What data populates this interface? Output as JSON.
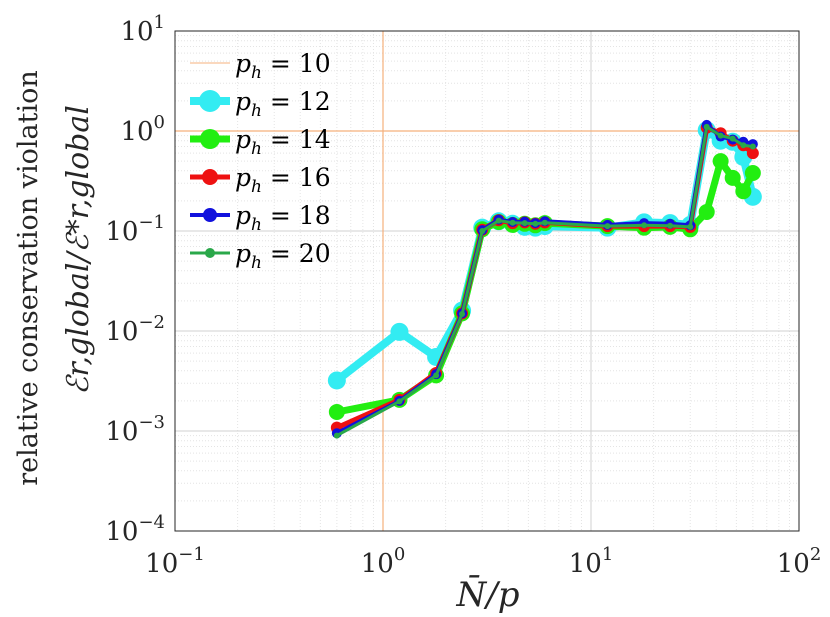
{
  "chart_data": {
    "type": "line",
    "xlabel": "N̄/p",
    "ylabel_line1": "relative conservation violation",
    "ylabel_line2": "ℰr,global/ℰ*r,global",
    "xscale": "log",
    "yscale": "log",
    "xlim": [
      0.1,
      100
    ],
    "ylim": [
      0.0001,
      10
    ],
    "grid": true,
    "legend_position": "top-left",
    "x_ticks": [
      {
        "base": "10",
        "exp": "−1"
      },
      {
        "base": "10",
        "exp": "0"
      },
      {
        "base": "10",
        "exp": "1"
      },
      {
        "base": "10",
        "exp": "2"
      }
    ],
    "y_ticks": [
      {
        "base": "10",
        "exp": "−4"
      },
      {
        "base": "10",
        "exp": "−3"
      },
      {
        "base": "10",
        "exp": "−2"
      },
      {
        "base": "10",
        "exp": "−1"
      },
      {
        "base": "10",
        "exp": "0"
      },
      {
        "base": "10",
        "exp": "1"
      }
    ],
    "reference_lines": {
      "x": 1,
      "y": 1,
      "color": "#f5b07c"
    },
    "series": [
      {
        "name": "p_h = 10",
        "legend_base": "p",
        "legend_sub": "h",
        "legend_value": " = 10",
        "color": "#f5b07c",
        "line_width": 1,
        "marker_size": 0,
        "x": [],
        "y": []
      },
      {
        "name": "p_h = 12",
        "legend_base": "p",
        "legend_sub": "h",
        "legend_value": " = 12",
        "color": "#33ecf2",
        "line_width": 8,
        "marker_size": 9,
        "x": [
          0.6,
          1.2,
          1.8,
          2.4,
          3.0,
          3.6,
          4.2,
          4.8,
          5.4,
          6.0,
          12,
          18,
          24,
          30,
          36,
          42,
          48,
          54,
          60
        ],
        "y": [
          0.0032,
          0.0098,
          0.0055,
          0.016,
          0.108,
          0.125,
          0.118,
          0.11,
          0.108,
          0.112,
          0.108,
          0.122,
          0.12,
          0.115,
          1.02,
          0.8,
          0.78,
          0.55,
          0.22
        ]
      },
      {
        "name": "p_h = 14",
        "legend_base": "p",
        "legend_sub": "h",
        "legend_value": " = 14",
        "color": "#22ee11",
        "line_width": 7,
        "marker_size": 8,
        "x": [
          0.6,
          1.2,
          1.8,
          2.4,
          3.0,
          3.6,
          4.2,
          4.8,
          5.4,
          6.0,
          12,
          18,
          24,
          30,
          36,
          42,
          48,
          54,
          60
        ],
        "y": [
          0.00155,
          0.00205,
          0.0036,
          0.015,
          0.104,
          0.123,
          0.115,
          0.118,
          0.114,
          0.12,
          0.112,
          0.108,
          0.11,
          0.104,
          0.155,
          0.5,
          0.34,
          0.25,
          0.38
        ]
      },
      {
        "name": "p_h = 16",
        "legend_base": "p",
        "legend_sub": "h",
        "legend_value": " = 16",
        "color": "#ee1111",
        "line_width": 5,
        "marker_size": 6,
        "x": [
          0.6,
          1.2,
          1.8,
          2.4,
          3.0,
          3.6,
          4.2,
          4.8,
          5.4,
          6.0,
          12,
          18,
          24,
          30,
          36,
          42,
          48,
          54,
          60
        ],
        "y": [
          0.00108,
          0.00205,
          0.0038,
          0.015,
          0.103,
          0.128,
          0.12,
          0.122,
          0.118,
          0.122,
          0.112,
          0.112,
          0.112,
          0.11,
          1.08,
          0.95,
          0.8,
          0.72,
          0.6
        ]
      },
      {
        "name": "p_h = 18",
        "legend_base": "p",
        "legend_sub": "h",
        "legend_value": " = 18",
        "color": "#1111dd",
        "line_width": 4,
        "marker_size": 5,
        "x": [
          0.6,
          1.2,
          1.8,
          2.4,
          3.0,
          3.6,
          4.2,
          4.8,
          5.4,
          6.0,
          12,
          18,
          24,
          30,
          36,
          42,
          48,
          54,
          60
        ],
        "y": [
          0.00095,
          0.002,
          0.0037,
          0.015,
          0.102,
          0.13,
          0.123,
          0.124,
          0.12,
          0.125,
          0.115,
          0.12,
          0.118,
          0.114,
          1.15,
          0.88,
          0.82,
          0.78,
          0.74
        ]
      },
      {
        "name": "p_h = 20",
        "legend_base": "p",
        "legend_sub": "h",
        "legend_value": " = 20",
        "color": "#2aa84a",
        "line_width": 3,
        "marker_size": 3,
        "x": [
          0.6,
          1.2,
          1.8,
          2.4,
          3.0,
          3.6,
          4.2,
          4.8,
          5.4,
          6.0,
          12,
          18,
          24,
          30,
          36,
          42,
          48,
          54,
          60
        ],
        "y": [
          0.0009,
          0.00198,
          0.0036,
          0.0148,
          0.1,
          0.127,
          0.121,
          0.12,
          0.118,
          0.121,
          0.112,
          0.114,
          0.113,
          0.11,
          1.1,
          0.9,
          0.84,
          0.72,
          0.7
        ]
      }
    ]
  }
}
